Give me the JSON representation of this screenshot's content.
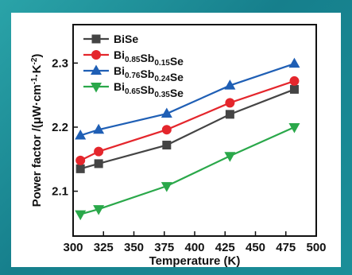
{
  "chart_data": {
    "type": "line",
    "title": "",
    "xlabel": "Temperature (K)",
    "ylabel": "Power factor /(μW·cm⁻¹·K⁻²)",
    "xlim": [
      300,
      500
    ],
    "ylim": [
      2.03,
      2.36
    ],
    "xticks": [
      300,
      325,
      350,
      375,
      400,
      425,
      450,
      475,
      500
    ],
    "yticks": [
      2.1,
      2.2,
      2.3
    ],
    "x": [
      306,
      321,
      377,
      429,
      482
    ],
    "grid": false,
    "legend_position": "top-left",
    "series": [
      {
        "name": "BiSe",
        "label_parts": [
          [
            "BiSe",
            ""
          ]
        ],
        "color": "#444444",
        "marker": "square",
        "values": [
          2.135,
          2.143,
          2.172,
          2.22,
          2.259
        ]
      },
      {
        "name": "Bi0.85Sb0.15Se",
        "label_parts": [
          [
            "Bi",
            "0.85"
          ],
          [
            "Sb",
            "0.15"
          ],
          [
            "Se",
            ""
          ]
        ],
        "color": "#e4262c",
        "marker": "circle",
        "values": [
          2.148,
          2.162,
          2.196,
          2.238,
          2.272
        ]
      },
      {
        "name": "Bi0.76Sb0.24Se",
        "label_parts": [
          [
            "Bi",
            "0.76"
          ],
          [
            "Sb",
            "0.24"
          ],
          [
            "Se",
            ""
          ]
        ],
        "color": "#1f5fb5",
        "marker": "triangle-up",
        "values": [
          2.187,
          2.196,
          2.221,
          2.265,
          2.299
        ]
      },
      {
        "name": "Bi0.65Sb0.35Se",
        "label_parts": [
          [
            "Bi",
            "0.65"
          ],
          [
            "Sb",
            "0.35"
          ],
          [
            "Se",
            ""
          ]
        ],
        "color": "#2aa84a",
        "marker": "triangle-down",
        "values": [
          2.064,
          2.072,
          2.108,
          2.155,
          2.2
        ]
      }
    ]
  }
}
